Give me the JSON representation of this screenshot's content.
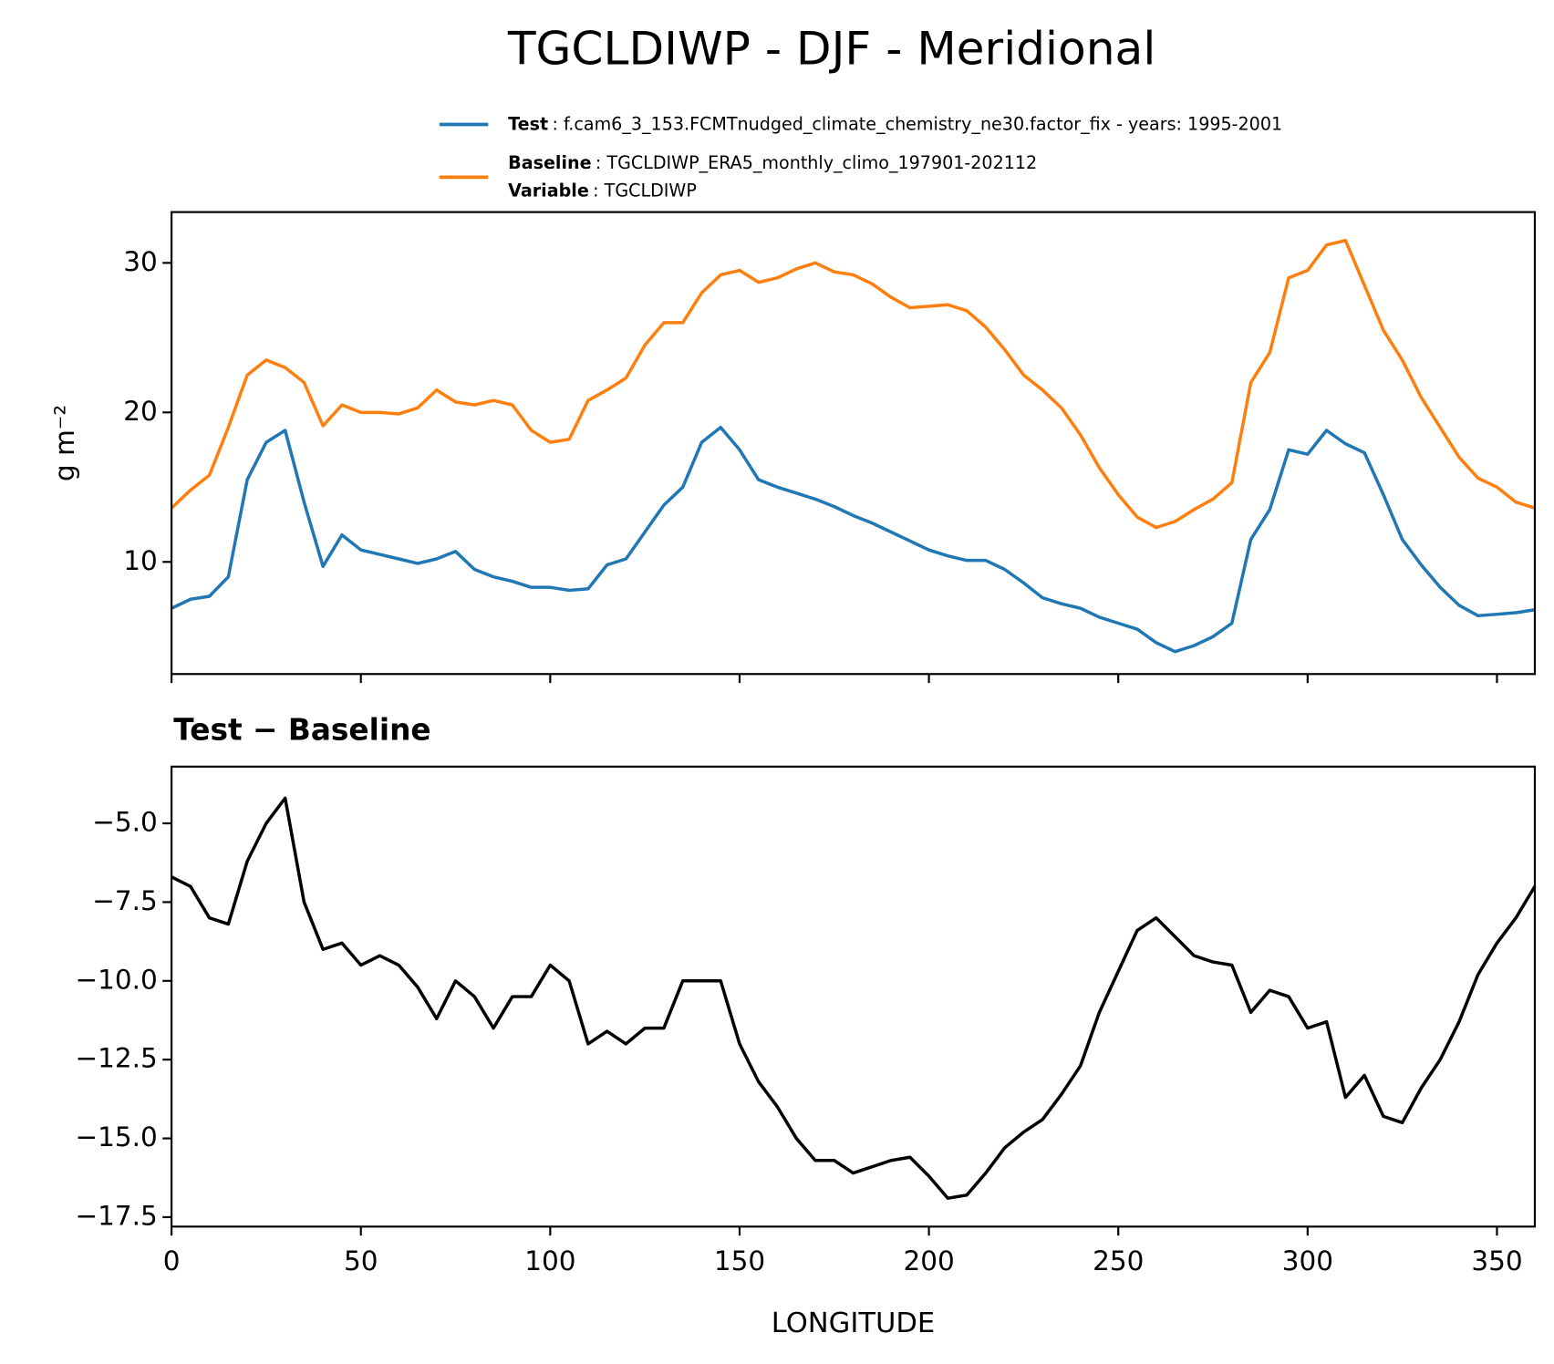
{
  "chart_data": [
    {
      "type": "line",
      "title": "TGCLDIWP - DJF - Meridional",
      "ylabel": "g m⁻²",
      "x": [
        0,
        5,
        10,
        15,
        20,
        25,
        30,
        35,
        40,
        45,
        50,
        55,
        60,
        65,
        70,
        75,
        80,
        85,
        90,
        95,
        100,
        105,
        110,
        115,
        120,
        125,
        130,
        135,
        140,
        145,
        150,
        155,
        160,
        165,
        170,
        175,
        180,
        185,
        190,
        195,
        200,
        205,
        210,
        215,
        220,
        225,
        230,
        235,
        240,
        245,
        250,
        255,
        260,
        265,
        270,
        275,
        280,
        285,
        290,
        295,
        300,
        305,
        310,
        315,
        320,
        325,
        330,
        335,
        340,
        345,
        350,
        355,
        360
      ],
      "series": [
        {
          "name": "Test",
          "description": ": f.cam6_3_153.FCMTnudged_climate_chemistry_ne30.factor_fix - years: 1995-2001",
          "color": "#1f77b4",
          "values": [
            6.9,
            7.5,
            7.7,
            9,
            15.5,
            18,
            18.8,
            14,
            9.7,
            11.8,
            10.8,
            10.5,
            10.2,
            9.9,
            10.2,
            10.7,
            9.5,
            9.0,
            8.7,
            8.3,
            8.3,
            8.1,
            8.2,
            9.8,
            10.2,
            12,
            13.8,
            15,
            18,
            19,
            17.5,
            15.5,
            15,
            14.6,
            14.2,
            13.7,
            13.1,
            12.6,
            12,
            11.4,
            10.8,
            10.4,
            10.1,
            10.1,
            9.5,
            8.6,
            7.6,
            7.2,
            6.9,
            6.3,
            5.9,
            5.5,
            4.6,
            4.0,
            4.4,
            5,
            5.9,
            11.5,
            13.5,
            17.5,
            17.2,
            18.8,
            17.9,
            17.3,
            14.5,
            11.5,
            9.8,
            8.3,
            7.1,
            6.4,
            6.5,
            6.6,
            6.8
          ]
        },
        {
          "name": "Baseline",
          "description": ": TGCLDIWP_ERA5_monthly_climo_197901-202112",
          "extra_name": "Variable",
          "extra_description": ": TGCLDIWP",
          "color": "#ff7f0e",
          "values": [
            13.6,
            14.8,
            15.8,
            19,
            22.5,
            23.5,
            23,
            22,
            19.1,
            20.5,
            20,
            20,
            19.9,
            20.3,
            21.5,
            20.7,
            20.5,
            20.8,
            20.5,
            18.8,
            18,
            18.2,
            20.8,
            21.5,
            22.3,
            24.5,
            26,
            26,
            28,
            29.2,
            29.5,
            28.7,
            29,
            29.6,
            30,
            29.4,
            29.2,
            28.6,
            27.7,
            27,
            27.1,
            27.2,
            26.8,
            25.7,
            24.2,
            22.5,
            21.5,
            20.3,
            18.5,
            16.3,
            14.5,
            13,
            12.3,
            12.7,
            13.5,
            14.2,
            15.3,
            22,
            24,
            29,
            29.5,
            31.2,
            31.5,
            28.5,
            25.5,
            23.5,
            21,
            19,
            17,
            15.6,
            15,
            14,
            13.6
          ]
        }
      ],
      "xlim": [
        0,
        360
      ],
      "xticks": [
        0,
        50,
        100,
        150,
        200,
        250,
        300,
        350
      ],
      "show_xticklabels": false,
      "ylim": [
        2.5,
        33.4
      ],
      "yticks": [
        10,
        20,
        30
      ],
      "legend": "upper right",
      "grid": false
    },
    {
      "type": "line",
      "title": "Test − Baseline",
      "xlabel": "LONGITUDE",
      "x": [
        0,
        5,
        10,
        15,
        20,
        25,
        30,
        35,
        40,
        45,
        50,
        55,
        60,
        65,
        70,
        75,
        80,
        85,
        90,
        95,
        100,
        105,
        110,
        115,
        120,
        125,
        130,
        135,
        140,
        145,
        150,
        155,
        160,
        165,
        170,
        175,
        180,
        185,
        190,
        195,
        200,
        205,
        210,
        215,
        220,
        225,
        230,
        235,
        240,
        245,
        250,
        255,
        260,
        265,
        270,
        275,
        280,
        285,
        290,
        295,
        300,
        305,
        310,
        315,
        320,
        325,
        330,
        335,
        340,
        345,
        350,
        355,
        360
      ],
      "series": [
        {
          "color": "#000000",
          "values": [
            -6.7,
            -7,
            -8,
            -8.2,
            -6.2,
            -5,
            -4.2,
            -7.5,
            -9,
            -8.8,
            -9.5,
            -9.2,
            -9.5,
            -10.2,
            -11.2,
            -10,
            -10.5,
            -11.5,
            -10.5,
            -10.5,
            -9.5,
            -10,
            -12,
            -11.6,
            -12,
            -11.5,
            -11.5,
            -10,
            -10,
            -10,
            -12,
            -13.2,
            -14,
            -15,
            -15.7,
            -15.7,
            -16.1,
            -15.9,
            -15.7,
            -15.6,
            -16.2,
            -16.9,
            -16.8,
            -16.1,
            -15.3,
            -14.8,
            -14.4,
            -13.6,
            -12.7,
            -11,
            -9.7,
            -8.4,
            -8,
            -8.6,
            -9.2,
            -9.4,
            -9.5,
            -11,
            -10.3,
            -10.5,
            -11.5,
            -11.3,
            -13.7,
            -13,
            -14.3,
            -14.5,
            -13.4,
            -12.5,
            -11.3,
            -9.8,
            -8.8,
            -8,
            -7
          ]
        }
      ],
      "xlim": [
        0,
        360
      ],
      "xticks": [
        0,
        50,
        100,
        150,
        200,
        250,
        300,
        350
      ],
      "show_xticklabels": true,
      "ylim": [
        -17.8,
        -3.2
      ],
      "yticks": [
        {
          "value": -5,
          "label": "−5.0"
        },
        {
          "value": -7.5,
          "label": "−7.5"
        },
        {
          "value": -10,
          "label": "−10.0"
        },
        {
          "value": -12.5,
          "label": "−12.5"
        },
        {
          "value": -15,
          "label": "−15.0"
        },
        {
          "value": -17.5,
          "label": "−17.5"
        }
      ],
      "grid": false
    }
  ]
}
